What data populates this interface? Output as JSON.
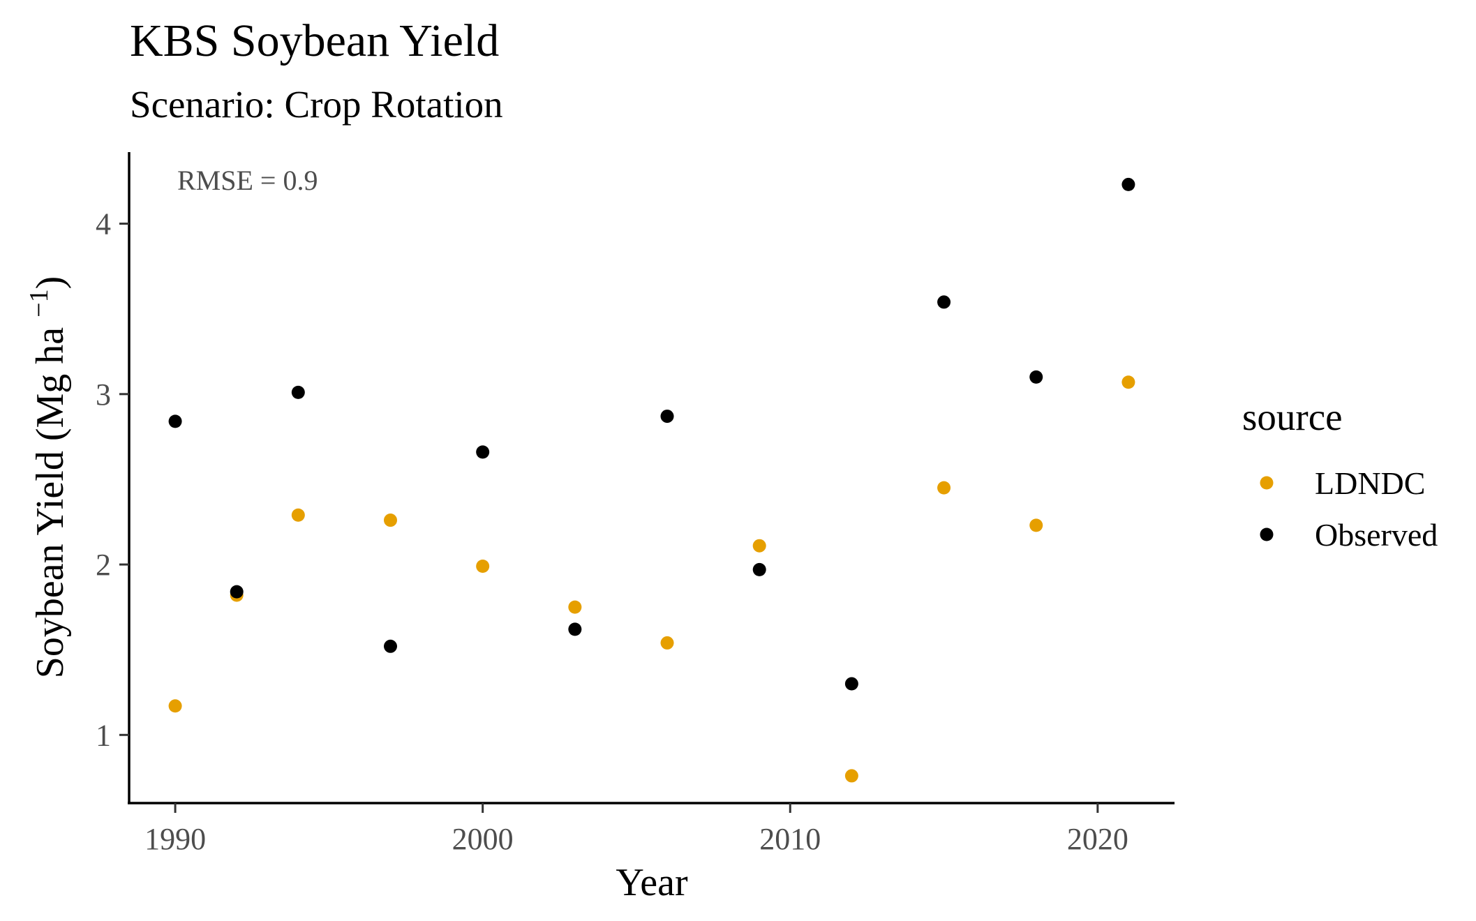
{
  "chart_data": {
    "type": "scatter",
    "title": "KBS Soybean Yield",
    "subtitle": "Scenario: Crop Rotation",
    "xlabel": "Year",
    "ylabel_main": "Soybean Yield (Mg ha ",
    "ylabel_sup": "−1",
    "ylabel_close": ")",
    "annotation": "RMSE = 0.9",
    "xlim": [
      1988.5,
      2022.5
    ],
    "ylim": [
      0.6,
      4.42
    ],
    "x_ticks": [
      1990,
      2000,
      2010,
      2020
    ],
    "y_ticks": [
      1,
      2,
      3,
      4
    ],
    "grid": false,
    "legend_title": "source",
    "legend_position": "right",
    "series": [
      {
        "name": "LDNDC",
        "color": "#E69F00",
        "points": [
          {
            "x": 1990,
            "y": 1.17
          },
          {
            "x": 1992,
            "y": 1.82
          },
          {
            "x": 1994,
            "y": 2.29
          },
          {
            "x": 1997,
            "y": 2.26
          },
          {
            "x": 2000,
            "y": 1.99
          },
          {
            "x": 2003,
            "y": 1.75
          },
          {
            "x": 2006,
            "y": 1.54
          },
          {
            "x": 2009,
            "y": 2.11
          },
          {
            "x": 2012,
            "y": 0.76
          },
          {
            "x": 2015,
            "y": 2.45
          },
          {
            "x": 2018,
            "y": 2.23
          },
          {
            "x": 2021,
            "y": 3.07
          }
        ]
      },
      {
        "name": "Observed",
        "color": "#000000",
        "points": [
          {
            "x": 1990,
            "y": 2.84
          },
          {
            "x": 1992,
            "y": 1.84
          },
          {
            "x": 1994,
            "y": 3.01
          },
          {
            "x": 1997,
            "y": 1.52
          },
          {
            "x": 2000,
            "y": 2.66
          },
          {
            "x": 2003,
            "y": 1.62
          },
          {
            "x": 2006,
            "y": 2.87
          },
          {
            "x": 2009,
            "y": 1.97
          },
          {
            "x": 2012,
            "y": 1.3
          },
          {
            "x": 2015,
            "y": 3.54
          },
          {
            "x": 2018,
            "y": 3.1
          },
          {
            "x": 2021,
            "y": 4.23
          }
        ]
      }
    ]
  }
}
